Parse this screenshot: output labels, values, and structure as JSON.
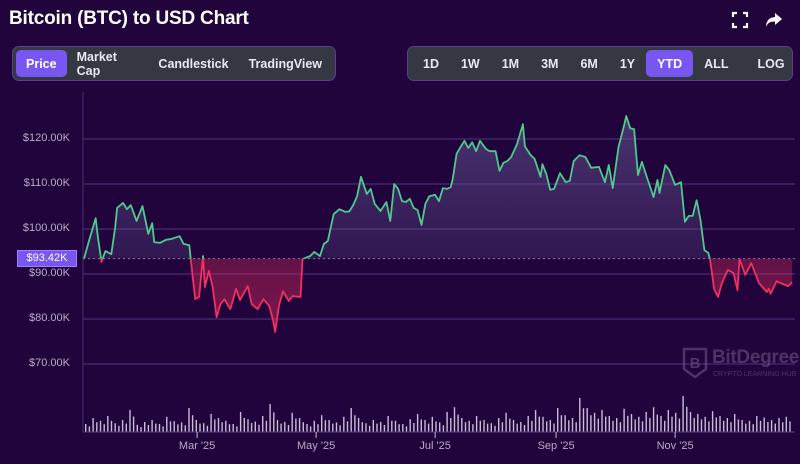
{
  "header": {
    "title": "Bitcoin (BTC) to USD Chart",
    "fullscreen_icon": "fullscreen-icon",
    "share_icon": "share-icon"
  },
  "chart_tabs": [
    {
      "label": "Price",
      "active": true
    },
    {
      "label": "Market Cap"
    },
    {
      "label": "Candlestick"
    },
    {
      "label": "TradingView"
    }
  ],
  "ranges": [
    {
      "label": "1D"
    },
    {
      "label": "1W"
    },
    {
      "label": "1M"
    },
    {
      "label": "3M"
    },
    {
      "label": "6M"
    },
    {
      "label": "1Y"
    },
    {
      "label": "YTD",
      "active": true
    },
    {
      "label": "ALL"
    }
  ],
  "log_label": "LOG",
  "colors": {
    "background": "#21043b",
    "up": "#4fc98c",
    "down": "#f03060",
    "accent": "#7856f2",
    "grid": "#4b2a73"
  },
  "watermark": {
    "brand": "BitDegree",
    "tagline": "CRYPTO LEARNING HUB"
  },
  "chart_data": {
    "type": "line",
    "title": "",
    "xlabel": "",
    "ylabel": "",
    "ylim": [
      60000,
      130000
    ],
    "grid": true,
    "y_ticks": [
      {
        "value": 120000,
        "label": "$120.00K"
      },
      {
        "value": 110000,
        "label": "$110.00K"
      },
      {
        "value": 100000,
        "label": "$100.00K"
      },
      {
        "value": 90000,
        "label": "$90.00K"
      },
      {
        "value": 80000,
        "label": "$80.00K"
      },
      {
        "value": 70000,
        "label": "$70.00K"
      }
    ],
    "x_ticks": [
      {
        "date": "2025-03-01",
        "label": "Mar '25"
      },
      {
        "date": "2025-05-01",
        "label": "May '25"
      },
      {
        "date": "2025-07-01",
        "label": "Jul '25"
      },
      {
        "date": "2025-09-01",
        "label": "Sep '25"
      },
      {
        "date": "2025-11-01",
        "label": "Nov '25"
      }
    ],
    "reference_price": {
      "value": 93420,
      "label": "$93.42K"
    },
    "series": [
      {
        "values": [
          [
            "2025-01-02",
            93.4
          ],
          [
            "2025-01-05",
            98.0
          ],
          [
            "2025-01-08",
            102.4
          ],
          [
            "2025-01-09",
            98.7
          ],
          [
            "2025-01-11",
            92.7
          ],
          [
            "2025-01-13",
            95.1
          ],
          [
            "2025-01-16",
            94.4
          ],
          [
            "2025-01-18",
            100.4
          ],
          [
            "2025-01-19",
            104.7
          ],
          [
            "2025-01-22",
            105.8
          ],
          [
            "2025-01-24",
            104.4
          ],
          [
            "2025-01-26",
            105.3
          ],
          [
            "2025-01-29",
            101.8
          ],
          [
            "2025-02-01",
            105.1
          ],
          [
            "2025-02-04",
            98.9
          ],
          [
            "2025-02-06",
            101.3
          ],
          [
            "2025-02-07",
            97.1
          ],
          [
            "2025-02-10",
            96.9
          ],
          [
            "2025-02-13",
            97.6
          ],
          [
            "2025-02-16",
            97.8
          ],
          [
            "2025-02-20",
            98.4
          ],
          [
            "2025-02-22",
            96.7
          ],
          [
            "2025-02-25",
            96.4
          ],
          [
            "2025-02-26",
            92.2
          ],
          [
            "2025-02-28",
            84.4
          ],
          [
            "2025-03-02",
            84.9
          ],
          [
            "2025-03-04",
            94.0
          ],
          [
            "2025-03-05",
            87.1
          ],
          [
            "2025-03-07",
            90.7
          ],
          [
            "2025-03-09",
            87.1
          ],
          [
            "2025-03-11",
            80.4
          ],
          [
            "2025-03-13",
            83.3
          ],
          [
            "2025-03-15",
            84.4
          ],
          [
            "2025-03-18",
            82.2
          ],
          [
            "2025-03-21",
            86.7
          ],
          [
            "2025-03-23",
            84.2
          ],
          [
            "2025-03-27",
            87.3
          ],
          [
            "2025-03-29",
            83.3
          ],
          [
            "2025-04-01",
            82.2
          ],
          [
            "2025-04-04",
            84.4
          ],
          [
            "2025-04-07",
            82.9
          ],
          [
            "2025-04-09",
            79.6
          ],
          [
            "2025-04-10",
            77.1
          ],
          [
            "2025-04-12",
            83.1
          ],
          [
            "2025-04-14",
            86.2
          ],
          [
            "2025-04-17",
            84.0
          ],
          [
            "2025-04-19",
            85.1
          ],
          [
            "2025-04-23",
            84.9
          ],
          [
            "2025-04-24",
            93.3
          ],
          [
            "2025-04-28",
            94.0
          ],
          [
            "2025-04-30",
            94.9
          ],
          [
            "2025-05-03",
            94.0
          ],
          [
            "2025-05-05",
            96.7
          ],
          [
            "2025-05-07",
            97.3
          ],
          [
            "2025-05-10",
            103.3
          ],
          [
            "2025-05-13",
            104.4
          ],
          [
            "2025-05-16",
            103.8
          ],
          [
            "2025-05-18",
            103.9
          ],
          [
            "2025-05-20",
            105.3
          ],
          [
            "2025-05-22",
            107.3
          ],
          [
            "2025-05-24",
            111.6
          ],
          [
            "2025-05-27",
            107.8
          ],
          [
            "2025-05-29",
            108.9
          ],
          [
            "2025-05-31",
            105.6
          ],
          [
            "2025-06-03",
            104.0
          ],
          [
            "2025-06-06",
            106.0
          ],
          [
            "2025-06-08",
            101.8
          ],
          [
            "2025-06-10",
            110.0
          ],
          [
            "2025-06-12",
            108.9
          ],
          [
            "2025-06-14",
            106.2
          ],
          [
            "2025-06-16",
            106.0
          ],
          [
            "2025-06-18",
            106.7
          ],
          [
            "2025-06-20",
            104.7
          ],
          [
            "2025-06-22",
            104.2
          ],
          [
            "2025-06-24",
            100.9
          ],
          [
            "2025-06-26",
            105.6
          ],
          [
            "2025-06-28",
            107.3
          ],
          [
            "2025-07-01",
            107.6
          ],
          [
            "2025-07-03",
            106.2
          ],
          [
            "2025-07-05",
            109.1
          ],
          [
            "2025-07-07",
            108.9
          ],
          [
            "2025-07-09",
            109.3
          ],
          [
            "2025-07-10",
            111.1
          ],
          [
            "2025-07-12",
            116.7
          ],
          [
            "2025-07-14",
            118.2
          ],
          [
            "2025-07-16",
            119.6
          ],
          [
            "2025-07-18",
            118.0
          ],
          [
            "2025-07-20",
            119.3
          ],
          [
            "2025-07-22",
            117.3
          ],
          [
            "2025-07-24",
            119.6
          ],
          [
            "2025-07-27",
            117.8
          ],
          [
            "2025-07-29",
            117.3
          ],
          [
            "2025-08-01",
            117.3
          ],
          [
            "2025-08-03",
            112.9
          ],
          [
            "2025-08-05",
            114.7
          ],
          [
            "2025-08-07",
            115.1
          ],
          [
            "2025-08-09",
            116.0
          ],
          [
            "2025-08-12",
            118.9
          ],
          [
            "2025-08-15",
            123.3
          ],
          [
            "2025-08-16",
            118.4
          ],
          [
            "2025-08-19",
            116.4
          ],
          [
            "2025-08-21",
            115.6
          ],
          [
            "2025-08-24",
            111.6
          ],
          [
            "2025-08-25",
            114.4
          ],
          [
            "2025-08-27",
            112.2
          ],
          [
            "2025-08-29",
            108.7
          ],
          [
            "2025-08-31",
            108.9
          ],
          [
            "2025-09-03",
            112.4
          ],
          [
            "2025-09-06",
            110.4
          ],
          [
            "2025-09-08",
            110.7
          ],
          [
            "2025-09-10",
            115.1
          ],
          [
            "2025-09-13",
            116.4
          ],
          [
            "2025-09-16",
            116.0
          ],
          [
            "2025-09-19",
            113.6
          ],
          [
            "2025-09-23",
            113.8
          ],
          [
            "2025-09-26",
            110.4
          ],
          [
            "2025-09-28",
            114.2
          ],
          [
            "2025-09-30",
            109.1
          ],
          [
            "2025-10-03",
            118.2
          ],
          [
            "2025-10-06",
            123.3
          ],
          [
            "2025-10-07",
            125.1
          ],
          [
            "2025-10-09",
            122.4
          ],
          [
            "2025-10-11",
            122.2
          ],
          [
            "2025-10-13",
            112.0
          ],
          [
            "2025-10-15",
            114.9
          ],
          [
            "2025-10-18",
            110.9
          ],
          [
            "2025-10-21",
            107.1
          ],
          [
            "2025-10-23",
            110.9
          ],
          [
            "2025-10-24",
            108.0
          ],
          [
            "2025-10-27",
            114.2
          ],
          [
            "2025-10-29",
            113.1
          ],
          [
            "2025-11-01",
            109.8
          ],
          [
            "2025-11-04",
            110.4
          ],
          [
            "2025-11-06",
            101.6
          ],
          [
            "2025-11-08",
            102.9
          ],
          [
            "2025-11-10",
            102.9
          ],
          [
            "2025-11-12",
            106.4
          ],
          [
            "2025-11-14",
            102.0
          ],
          [
            "2025-11-16",
            95.3
          ],
          [
            "2025-11-18",
            94.7
          ],
          [
            "2025-11-19",
            93.1
          ],
          [
            "2025-11-21",
            86.7
          ],
          [
            "2025-11-23",
            84.9
          ],
          [
            "2025-11-25",
            88.0
          ],
          [
            "2025-11-28",
            90.9
          ],
          [
            "2025-12-01",
            90.2
          ],
          [
            "2025-12-03",
            86.4
          ],
          [
            "2025-12-04",
            93.3
          ],
          [
            "2025-12-07",
            89.8
          ],
          [
            "2025-12-10",
            92.4
          ],
          [
            "2025-12-12",
            90.2
          ],
          [
            "2025-12-14",
            88.0
          ],
          [
            "2025-12-18",
            86.0
          ],
          [
            "2025-12-19",
            86.7
          ],
          [
            "2025-12-20",
            85.6
          ],
          [
            "2025-12-23",
            88.4
          ],
          [
            "2025-12-26",
            87.8
          ],
          [
            "2025-12-29",
            87.3
          ],
          [
            "2025-12-31",
            88.2
          ]
        ]
      }
    ],
    "price_unit": "thousand USD",
    "volume_relative": [
      20,
      35,
      28,
      40,
      22,
      30,
      55,
      18,
      25,
      30,
      20,
      38,
      27,
      24,
      60,
      30,
      22,
      45,
      35,
      28,
      20,
      50,
      32,
      26,
      40,
      70,
      30,
      25,
      48,
      35,
      20,
      28,
      42,
      30,
      24,
      38,
      60,
      35,
      22,
      30,
      25,
      40,
      28,
      20,
      32,
      45,
      30,
      38,
      24,
      50,
      62,
      35,
      28,
      40,
      30,
      22,
      35,
      48,
      30,
      25,
      40,
      55,
      38,
      30,
      60,
      42,
      35,
      85,
      60,
      48,
      55,
      40,
      35,
      58,
      45,
      38,
      50,
      62,
      40,
      55,
      48,
      90,
      50,
      45,
      38,
      52,
      40,
      35,
      45,
      30,
      28,
      40,
      36,
      30,
      35,
      38
    ]
  }
}
